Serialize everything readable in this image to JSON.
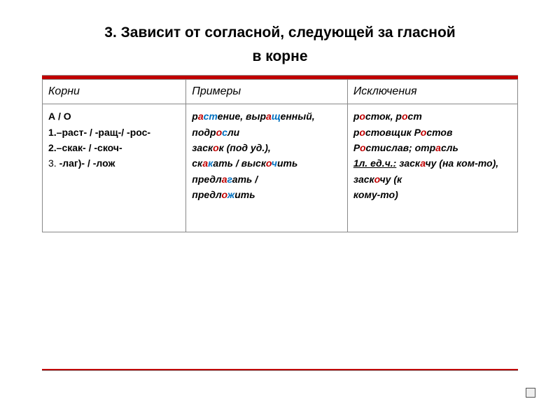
{
  "title_line1": "3. Зависит  от согласной, следующей за гласной",
  "title_line2": "в корне",
  "headers": {
    "c1": "Корни",
    "c2": "Примеры",
    "c3": "Исключения"
  },
  "col1": {
    "l0": "А / О",
    "l1": "1.–раст- / -ращ-/ -рос-",
    "l2": "2.–скак- / -скоч-",
    "l3a": "3.",
    "l3b": " -лаг)- / -лож"
  },
  "col2": {
    "w1a": "р",
    "w1b": "а",
    "w1c": "ст",
    "w1d": "ение, выр",
    "w1e": "а",
    "w1f": "щ",
    "w1g": "енный, подр",
    "w1h": "о",
    "w1i": "с",
    "w1j": "ли",
    "w2a": "заск",
    "w2b": "о",
    "w2c": "к (под  уд.),",
    "w3a": "ск",
    "w3b": "а",
    "w3c": "к",
    "w3d": "ать / выск",
    "w3e": "о",
    "w3f": "ч",
    "w3g": "ить",
    "w4a": "предл",
    "w4b": "а",
    "w4c": "г",
    "w4d": "ать /",
    "w5a": "предл",
    "w5b": "о",
    "w5c": "ж",
    "w5d": "ить"
  },
  "col3": {
    "w1a": "р",
    "w1b": "о",
    "w1c": "сток,  р",
    "w1d": "о",
    "w1e": "ст",
    "w2a": "р",
    "w2b": "о",
    "w2c": "стовщик Р",
    "w2d": "о",
    "w2e": "стов",
    "w3a": "Р",
    "w3b": "о",
    "w3c": "стислав;  отр",
    "w3d": "а",
    "w3e": "сль",
    "w4u": "1л. ед.ч.:",
    "w4a": " заск",
    "w4b": "а",
    "w4c": "чу (на ком-то), заск",
    "w4d": "о",
    "w4e": "чу (к",
    "w5a": "кому-то)"
  }
}
